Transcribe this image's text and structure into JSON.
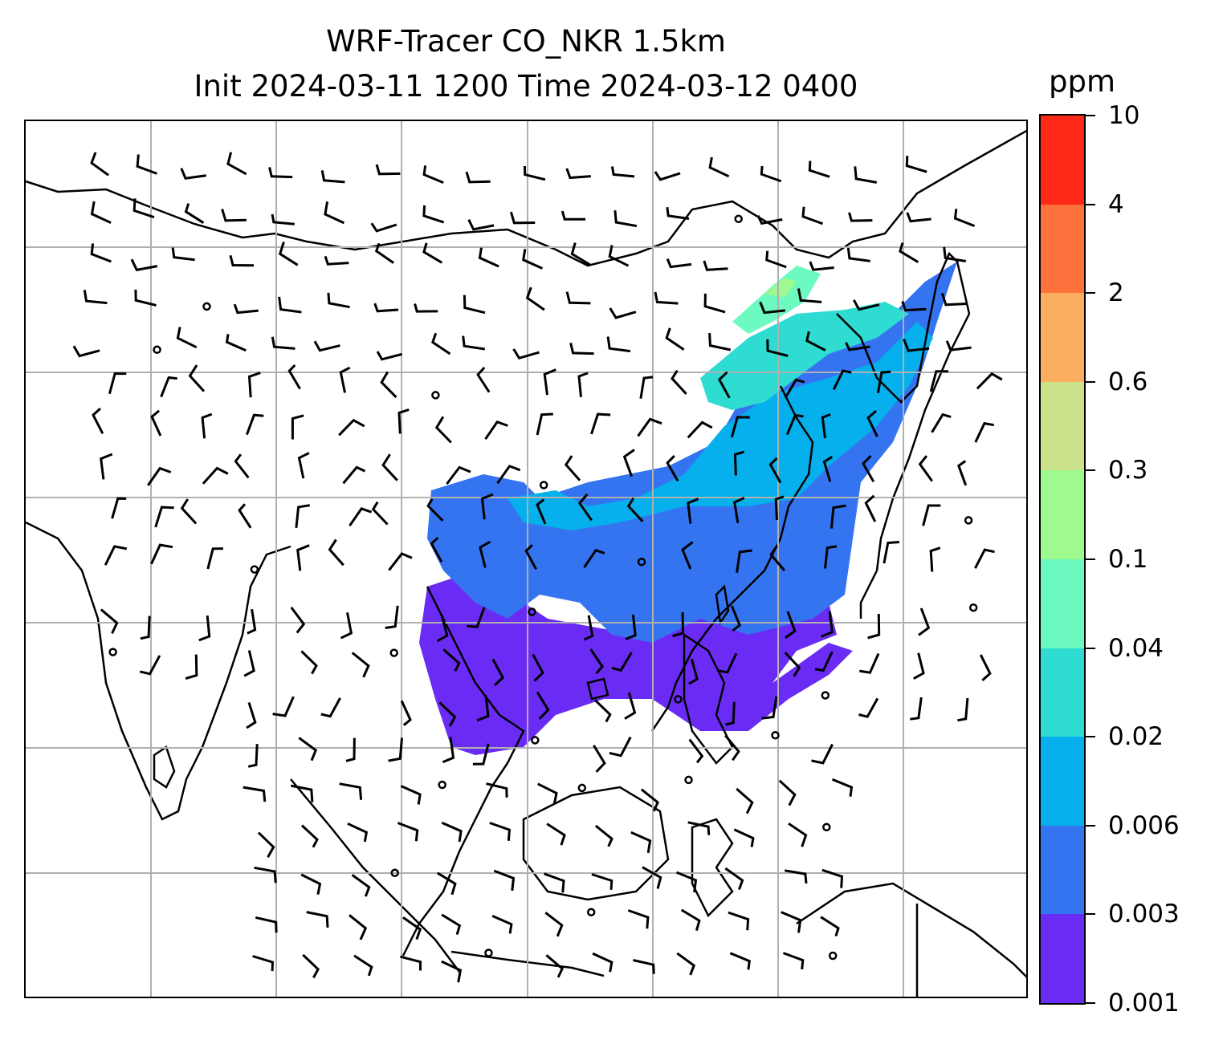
{
  "title": {
    "line1": "WRF-Tracer CO_NKR 1.5km",
    "line2": "Init 2024-03-11 1200 Time 2024-03-12 0400"
  },
  "colorbar": {
    "unit": "ppm",
    "ticks": [
      "0.001",
      "0.003",
      "0.006",
      "0.02",
      "0.04",
      "0.1",
      "0.3",
      "0.6",
      "2",
      "4",
      "10"
    ],
    "colors": [
      "#6a2cf5",
      "#3574f1",
      "#06b0ec",
      "#2fdcd2",
      "#6cfac0",
      "#9ef98e",
      "#cbe18a",
      "#fcae60",
      "#ff723d",
      "#fe2a17"
    ]
  },
  "map": {
    "gridlines": true,
    "contour_field": "CO_NKR tracer concentration",
    "wind_barbs": true
  }
}
